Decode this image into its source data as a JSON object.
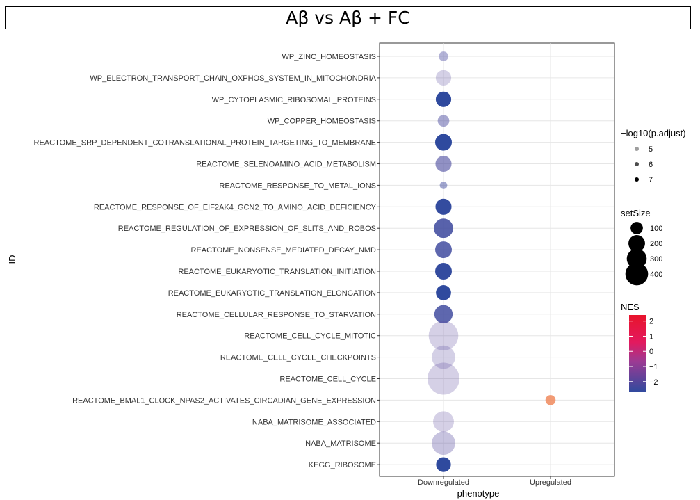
{
  "chart_data": {
    "type": "scatter",
    "title": "Aβ vs Aβ + FC",
    "xlabel": "phenotype",
    "ylabel": "ID",
    "x_categories": [
      "Downregulated",
      "Upregulated"
    ],
    "y_categories": [
      "WP_ZINC_HOMEOSTASIS",
      "WP_ELECTRON_TRANSPORT_CHAIN_OXPHOS_SYSTEM_IN_MITOCHONDRIA",
      "WP_CYTOPLASMIC_RIBOSOMAL_PROTEINS",
      "WP_COPPER_HOMEOSTASIS",
      "REACTOME_SRP_DEPENDENT_COTRANSLATIONAL_PROTEIN_TARGETING_TO_MEMBRANE",
      "REACTOME_SELENOAMINO_ACID_METABOLISM",
      "REACTOME_RESPONSE_TO_METAL_IONS",
      "REACTOME_RESPONSE_OF_EIF2AK4_GCN2_TO_AMINO_ACID_DEFICIENCY",
      "REACTOME_REGULATION_OF_EXPRESSION_OF_SLITS_AND_ROBOS",
      "REACTOME_NONSENSE_MEDIATED_DECAY_NMD",
      "REACTOME_EUKARYOTIC_TRANSLATION_INITIATION",
      "REACTOME_EUKARYOTIC_TRANSLATION_ELONGATION",
      "REACTOME_CELLULAR_RESPONSE_TO_STARVATION",
      "REACTOME_CELL_CYCLE_MITOTIC",
      "REACTOME_CELL_CYCLE_CHECKPOINTS",
      "REACTOME_CELL_CYCLE",
      "REACTOME_BMAL1_CLOCK_NPAS2_ACTIVATES_CIRCADIAN_GENE_EXPRESSION",
      "NABA_MATRISOME_ASSOCIATED",
      "NABA_MATRISOME",
      "KEGG_RIBOSOME"
    ],
    "points": [
      {
        "id": "WP_ZINC_HOMEOSTASIS",
        "phenotype": "Downregulated",
        "setSize": 30,
        "NES": -2.0,
        "neg_log10_padj": 5.1
      },
      {
        "id": "WP_ELECTRON_TRANSPORT_CHAIN_OXPHOS_SYSTEM_IN_MITOCHONDRIA",
        "phenotype": "Downregulated",
        "setSize": 100,
        "NES": -1.6,
        "neg_log10_padj": 4.6
      },
      {
        "id": "WP_CYTOPLASMIC_RIBOSOMAL_PROTEINS",
        "phenotype": "Downregulated",
        "setSize": 100,
        "NES": -2.7,
        "neg_log10_padj": 7.0
      },
      {
        "id": "WP_COPPER_HOMEOSTASIS",
        "phenotype": "Downregulated",
        "setSize": 50,
        "NES": -2.0,
        "neg_log10_padj": 5.3
      },
      {
        "id": "REACTOME_SRP_DEPENDENT_COTRANSLATIONAL_PROTEIN_TARGETING_TO_MEMBRANE",
        "phenotype": "Downregulated",
        "setSize": 120,
        "NES": -2.7,
        "neg_log10_padj": 7.1
      },
      {
        "id": "REACTOME_SELENOAMINO_ACID_METABOLISM",
        "phenotype": "Downregulated",
        "setSize": 110,
        "NES": -2.0,
        "neg_log10_padj": 5.7
      },
      {
        "id": "REACTOME_RESPONSE_TO_METAL_IONS",
        "phenotype": "Downregulated",
        "setSize": 15,
        "NES": -2.3,
        "neg_log10_padj": 5.3
      },
      {
        "id": "REACTOME_RESPONSE_OF_EIF2AK4_GCN2_TO_AMINO_ACID_DEFICIENCY",
        "phenotype": "Downregulated",
        "setSize": 110,
        "NES": -2.6,
        "neg_log10_padj": 6.9
      },
      {
        "id": "REACTOME_REGULATION_OF_EXPRESSION_OF_SLITS_AND_ROBOS",
        "phenotype": "Downregulated",
        "setSize": 170,
        "NES": -2.3,
        "neg_log10_padj": 6.5
      },
      {
        "id": "REACTOME_NONSENSE_MEDIATED_DECAY_NMD",
        "phenotype": "Downregulated",
        "setSize": 120,
        "NES": -2.3,
        "neg_log10_padj": 6.4
      },
      {
        "id": "REACTOME_EUKARYOTIC_TRANSLATION_INITIATION",
        "phenotype": "Downregulated",
        "setSize": 120,
        "NES": -2.6,
        "neg_log10_padj": 6.9
      },
      {
        "id": "REACTOME_EUKARYOTIC_TRANSLATION_ELONGATION",
        "phenotype": "Downregulated",
        "setSize": 95,
        "NES": -2.7,
        "neg_log10_padj": 7.1
      },
      {
        "id": "REACTOME_CELLULAR_RESPONSE_TO_STARVATION",
        "phenotype": "Downregulated",
        "setSize": 150,
        "NES": -2.3,
        "neg_log10_padj": 6.4
      },
      {
        "id": "REACTOME_CELL_CYCLE_MITOTIC",
        "phenotype": "Downregulated",
        "setSize": 440,
        "NES": -1.5,
        "neg_log10_padj": 4.6
      },
      {
        "id": "REACTOME_CELL_CYCLE_CHECKPOINTS",
        "phenotype": "Downregulated",
        "setSize": 260,
        "NES": -1.6,
        "neg_log10_padj": 4.6
      },
      {
        "id": "REACTOME_CELL_CYCLE",
        "phenotype": "Downregulated",
        "setSize": 520,
        "NES": -1.5,
        "neg_log10_padj": 4.6
      },
      {
        "id": "REACTOME_BMAL1_CLOCK_NPAS2_ACTIVATES_CIRCADIAN_GENE_EXPRESSION",
        "phenotype": "Upregulated",
        "setSize": 35,
        "NES": 2.3,
        "neg_log10_padj": 4.6
      },
      {
        "id": "NABA_MATRISOME_ASSOCIATED",
        "phenotype": "Downregulated",
        "setSize": 200,
        "NES": -1.5,
        "neg_log10_padj": 4.6
      },
      {
        "id": "NABA_MATRISOME",
        "phenotype": "Downregulated",
        "setSize": 260,
        "NES": -1.7,
        "neg_log10_padj": 4.8
      },
      {
        "id": "KEGG_RIBOSOME",
        "phenotype": "Downregulated",
        "setSize": 90,
        "NES": -2.7,
        "neg_log10_padj": 7.1
      }
    ],
    "legends": {
      "alpha": {
        "title": "−log10(p.adjust)",
        "values": [
          5,
          6,
          7
        ]
      },
      "size": {
        "title": "setSize",
        "values": [
          100,
          200,
          300,
          400
        ]
      },
      "color": {
        "title": "NES",
        "ticks": [
          2,
          1,
          0,
          -1,
          -2
        ],
        "tick_labels": [
          "2",
          "1",
          "0",
          "−1",
          "−2"
        ],
        "range": [
          -2.7,
          2.4
        ]
      }
    },
    "grid": true,
    "legend_position": "right"
  }
}
